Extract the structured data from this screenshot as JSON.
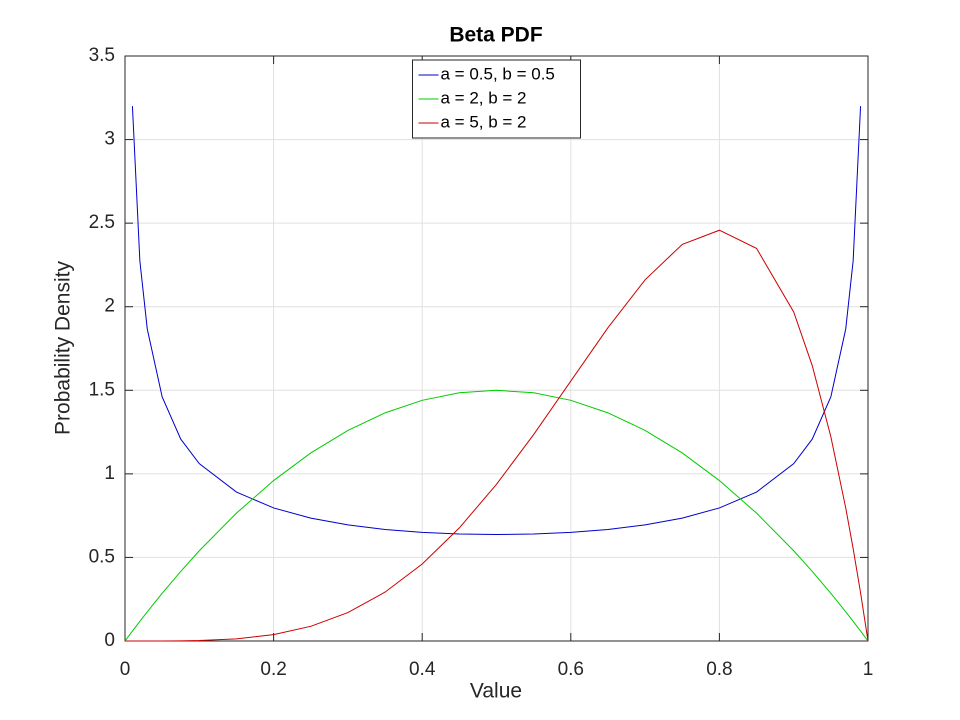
{
  "chart_data": {
    "type": "line",
    "title": "Beta PDF",
    "x_label": "Value",
    "y_label": "Probability Density",
    "x": [
      0,
      0.01,
      0.02,
      0.03,
      0.05,
      0.075,
      0.1,
      0.15,
      0.2,
      0.25,
      0.3,
      0.35,
      0.4,
      0.45,
      0.5,
      0.55,
      0.6,
      0.65,
      0.7,
      0.75,
      0.8,
      0.85,
      0.9,
      0.925,
      0.95,
      0.97,
      0.98,
      0.99,
      1
    ],
    "series": [
      {
        "name": "a = 0.5, b = 0.5",
        "color": "#0000cc",
        "values": [
          null,
          3.2,
          2.274,
          1.866,
          1.461,
          1.208,
          1.061,
          0.891,
          0.796,
          0.735,
          0.695,
          0.667,
          0.65,
          0.64,
          0.637,
          0.64,
          0.65,
          0.667,
          0.695,
          0.735,
          0.796,
          0.891,
          1.061,
          1.208,
          1.461,
          1.866,
          2.274,
          3.2,
          null
        ]
      },
      {
        "name": "a = 2, b = 2",
        "color": "#00cc00",
        "values": [
          0,
          0.0594,
          0.1176,
          0.1746,
          0.285,
          0.41625,
          0.54,
          0.765,
          0.96,
          1.125,
          1.26,
          1.365,
          1.44,
          1.485,
          1.5,
          1.485,
          1.44,
          1.365,
          1.26,
          1.125,
          0.96,
          0.765,
          0.54,
          0.41625,
          0.285,
          0.1746,
          0.1176,
          0.0594,
          0
        ]
      },
      {
        "name": "a = 5, b = 2",
        "color": "#cc0000",
        "values": [
          0,
          0,
          0,
          0,
          0.0002,
          0.0009,
          0.0027,
          0.0129,
          0.0384,
          0.0879,
          0.1701,
          0.2926,
          0.4608,
          0.6766,
          0.9375,
          1.2353,
          1.5552,
          1.8743,
          2.1609,
          2.373,
          2.4576,
          2.349,
          1.9683,
          1.6472,
          1.2218,
          0.7968,
          0.5534,
          0.2882,
          0
        ]
      }
    ],
    "xlim": [
      0,
      1
    ],
    "xticks": [
      0,
      0.2,
      0.4,
      0.6,
      0.8,
      1
    ],
    "ylim": [
      0,
      3.5
    ],
    "yticks": [
      0,
      0.5,
      1,
      1.5,
      2,
      2.5,
      3,
      3.5
    ],
    "grid": true,
    "legend": "north"
  }
}
